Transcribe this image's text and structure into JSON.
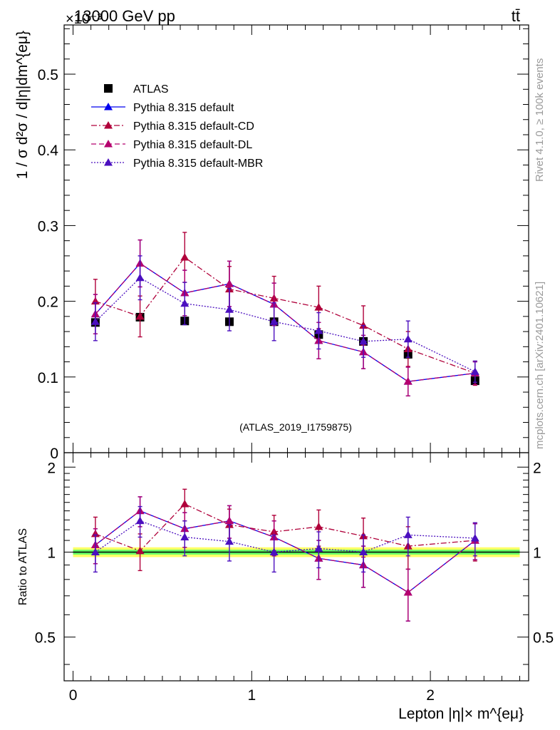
{
  "header": {
    "energy_label": "13000 GeV pp",
    "process_label": "tt̄",
    "exponent_label": "×10⁻³"
  },
  "side": {
    "rivet_label": "Rivet 4.1.0, ≥ 100k events",
    "source_label": "mcplots.cern.ch [arXiv:2401.10621]"
  },
  "analysis_label": "(ATLAS_2019_I1759875)",
  "chart_data": [
    {
      "type": "scatter",
      "panel": "main",
      "title": "",
      "xlabel": "Lepton |η|× m^{eμ}",
      "ylabel": "1 / σ  d²σ / d|η|dm^{eμ}",
      "xlim": [
        -0.05,
        2.55
      ],
      "ylim": [
        0.0,
        0.565
      ],
      "y_multiplier": "×10^-3",
      "yticks": [
        0,
        0.1,
        0.2,
        0.3,
        0.4,
        0.5
      ],
      "ytick_labels": [
        "0",
        "0.1",
        "0.2",
        "0.3",
        "0.4",
        "0.5"
      ],
      "legend_position": "top-left",
      "x": [
        0.125,
        0.375,
        0.625,
        0.875,
        1.125,
        1.375,
        1.625,
        1.875,
        2.25
      ],
      "series": [
        {
          "name": "ATLAS",
          "color": "#000000",
          "marker": "square",
          "line": "none",
          "values": [
            0.172,
            0.179,
            0.174,
            0.173,
            0.173,
            0.156,
            0.147,
            0.13,
            0.095
          ],
          "err": [
            0.004,
            0.004,
            0.004,
            0.004,
            0.004,
            0.004,
            0.004,
            0.004,
            0.004
          ]
        },
        {
          "name": "Pythia 8.315 default",
          "color": "#0000ee",
          "marker": "triangle",
          "line": "solid",
          "values": [
            0.183,
            0.25,
            0.211,
            0.223,
            0.196,
            0.148,
            0.133,
            0.094,
            0.105
          ],
          "err": [
            0.026,
            0.031,
            0.03,
            0.03,
            0.028,
            0.024,
            0.022,
            0.019,
            0.015
          ]
        },
        {
          "name": "Pythia 8.315 default-CD",
          "color": "#b0003a",
          "marker": "triangle",
          "line": "dashdot",
          "values": [
            0.2,
            0.18,
            0.258,
            0.216,
            0.204,
            0.192,
            0.168,
            0.137,
            0.105
          ],
          "err": [
            0.029,
            0.027,
            0.033,
            0.03,
            0.029,
            0.028,
            0.026,
            0.023,
            0.016
          ]
        },
        {
          "name": "Pythia 8.315 default-DL",
          "color": "#b5006e",
          "marker": "triangle",
          "line": "dashed",
          "values": [
            0.183,
            0.25,
            0.211,
            0.223,
            0.196,
            0.148,
            0.133,
            0.094,
            0.105
          ],
          "err": [
            0.026,
            0.031,
            0.03,
            0.03,
            0.028,
            0.024,
            0.022,
            0.019,
            0.015
          ]
        },
        {
          "name": "Pythia 8.315 default-MBR",
          "color": "#4b0fbf",
          "marker": "triangle",
          "line": "dotted",
          "values": [
            0.173,
            0.231,
            0.197,
            0.189,
            0.173,
            0.161,
            0.147,
            0.15,
            0.107
          ],
          "err": [
            0.025,
            0.029,
            0.028,
            0.028,
            0.025,
            0.024,
            0.021,
            0.024,
            0.014
          ]
        }
      ]
    },
    {
      "type": "scatter",
      "panel": "ratio",
      "title": "",
      "xlabel": "Lepton |η|× m^{eμ}",
      "ylabel": "Ratio to ATLAS",
      "xlim": [
        -0.05,
        2.55
      ],
      "ylim": [
        0.35,
        2.25
      ],
      "yscale": "log",
      "xticks": [
        0,
        1,
        2
      ],
      "xtick_labels": [
        "0",
        "1",
        "2"
      ],
      "yticks": [
        0.5,
        1,
        2
      ],
      "ytick_labels": [
        "0.5",
        "1",
        "2"
      ],
      "band_colors": [
        "#ffff66",
        "#66ff66"
      ],
      "band_outer": 0.04,
      "band_inner": 0.02,
      "x": [
        0.125,
        0.375,
        0.625,
        0.875,
        1.125,
        1.375,
        1.625,
        1.875,
        2.25
      ],
      "series": [
        {
          "name": "Pythia 8.315 default",
          "color": "#0000ee",
          "marker": "triangle",
          "line": "solid",
          "values": [
            1.06,
            1.4,
            1.21,
            1.29,
            1.13,
            0.95,
            0.9,
            0.72,
            1.1
          ],
          "err": [
            0.15,
            0.17,
            0.17,
            0.17,
            0.16,
            0.15,
            0.15,
            0.15,
            0.16
          ]
        },
        {
          "name": "Pythia 8.315 default-CD",
          "color": "#b0003a",
          "marker": "triangle",
          "line": "dashdot",
          "values": [
            1.16,
            1.01,
            1.48,
            1.25,
            1.18,
            1.23,
            1.14,
            1.05,
            1.1
          ],
          "err": [
            0.17,
            0.15,
            0.19,
            0.17,
            0.17,
            0.18,
            0.18,
            0.18,
            0.17
          ]
        },
        {
          "name": "Pythia 8.315 default-DL",
          "color": "#b5006e",
          "marker": "triangle",
          "line": "dashed",
          "values": [
            1.06,
            1.4,
            1.21,
            1.29,
            1.13,
            0.95,
            0.9,
            0.72,
            1.1
          ],
          "err": [
            0.15,
            0.17,
            0.17,
            0.17,
            0.16,
            0.15,
            0.15,
            0.15,
            0.16
          ]
        },
        {
          "name": "Pythia 8.315 default-MBR",
          "color": "#4b0fbf",
          "marker": "triangle",
          "line": "dotted",
          "values": [
            1.0,
            1.29,
            1.13,
            1.09,
            1.0,
            1.03,
            1.0,
            1.15,
            1.12
          ],
          "err": [
            0.15,
            0.16,
            0.16,
            0.16,
            0.15,
            0.15,
            0.15,
            0.18,
            0.15
          ]
        }
      ]
    }
  ]
}
